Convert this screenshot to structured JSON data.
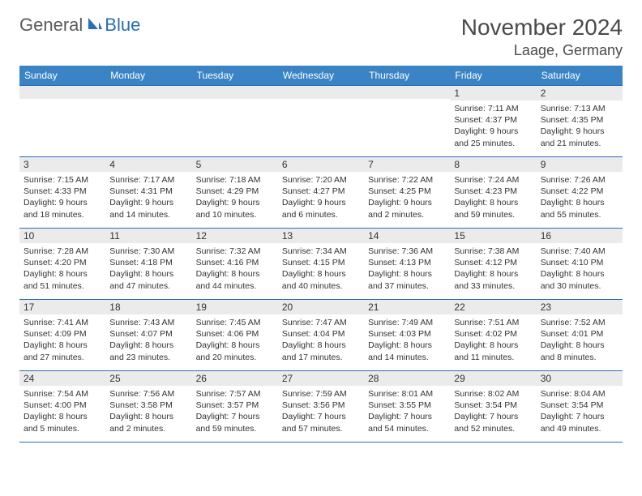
{
  "logo": {
    "general": "General",
    "blue": "Blue"
  },
  "header": {
    "title": "November 2024",
    "location": "Laage, Germany"
  },
  "colors": {
    "header_bg": "#3a84c6",
    "header_text": "#ffffff",
    "border": "#2a6db8",
    "daynum_bg": "#ebebeb",
    "logo_gray": "#5a5a5a",
    "logo_blue": "#2a6db8"
  },
  "weekdays": [
    "Sunday",
    "Monday",
    "Tuesday",
    "Wednesday",
    "Thursday",
    "Friday",
    "Saturday"
  ],
  "weeks": [
    [
      {
        "n": "",
        "sr": "",
        "ss": "",
        "dl": ""
      },
      {
        "n": "",
        "sr": "",
        "ss": "",
        "dl": ""
      },
      {
        "n": "",
        "sr": "",
        "ss": "",
        "dl": ""
      },
      {
        "n": "",
        "sr": "",
        "ss": "",
        "dl": ""
      },
      {
        "n": "",
        "sr": "",
        "ss": "",
        "dl": ""
      },
      {
        "n": "1",
        "sr": "Sunrise: 7:11 AM",
        "ss": "Sunset: 4:37 PM",
        "dl": "Daylight: 9 hours and 25 minutes."
      },
      {
        "n": "2",
        "sr": "Sunrise: 7:13 AM",
        "ss": "Sunset: 4:35 PM",
        "dl": "Daylight: 9 hours and 21 minutes."
      }
    ],
    [
      {
        "n": "3",
        "sr": "Sunrise: 7:15 AM",
        "ss": "Sunset: 4:33 PM",
        "dl": "Daylight: 9 hours and 18 minutes."
      },
      {
        "n": "4",
        "sr": "Sunrise: 7:17 AM",
        "ss": "Sunset: 4:31 PM",
        "dl": "Daylight: 9 hours and 14 minutes."
      },
      {
        "n": "5",
        "sr": "Sunrise: 7:18 AM",
        "ss": "Sunset: 4:29 PM",
        "dl": "Daylight: 9 hours and 10 minutes."
      },
      {
        "n": "6",
        "sr": "Sunrise: 7:20 AM",
        "ss": "Sunset: 4:27 PM",
        "dl": "Daylight: 9 hours and 6 minutes."
      },
      {
        "n": "7",
        "sr": "Sunrise: 7:22 AM",
        "ss": "Sunset: 4:25 PM",
        "dl": "Daylight: 9 hours and 2 minutes."
      },
      {
        "n": "8",
        "sr": "Sunrise: 7:24 AM",
        "ss": "Sunset: 4:23 PM",
        "dl": "Daylight: 8 hours and 59 minutes."
      },
      {
        "n": "9",
        "sr": "Sunrise: 7:26 AM",
        "ss": "Sunset: 4:22 PM",
        "dl": "Daylight: 8 hours and 55 minutes."
      }
    ],
    [
      {
        "n": "10",
        "sr": "Sunrise: 7:28 AM",
        "ss": "Sunset: 4:20 PM",
        "dl": "Daylight: 8 hours and 51 minutes."
      },
      {
        "n": "11",
        "sr": "Sunrise: 7:30 AM",
        "ss": "Sunset: 4:18 PM",
        "dl": "Daylight: 8 hours and 47 minutes."
      },
      {
        "n": "12",
        "sr": "Sunrise: 7:32 AM",
        "ss": "Sunset: 4:16 PM",
        "dl": "Daylight: 8 hours and 44 minutes."
      },
      {
        "n": "13",
        "sr": "Sunrise: 7:34 AM",
        "ss": "Sunset: 4:15 PM",
        "dl": "Daylight: 8 hours and 40 minutes."
      },
      {
        "n": "14",
        "sr": "Sunrise: 7:36 AM",
        "ss": "Sunset: 4:13 PM",
        "dl": "Daylight: 8 hours and 37 minutes."
      },
      {
        "n": "15",
        "sr": "Sunrise: 7:38 AM",
        "ss": "Sunset: 4:12 PM",
        "dl": "Daylight: 8 hours and 33 minutes."
      },
      {
        "n": "16",
        "sr": "Sunrise: 7:40 AM",
        "ss": "Sunset: 4:10 PM",
        "dl": "Daylight: 8 hours and 30 minutes."
      }
    ],
    [
      {
        "n": "17",
        "sr": "Sunrise: 7:41 AM",
        "ss": "Sunset: 4:09 PM",
        "dl": "Daylight: 8 hours and 27 minutes."
      },
      {
        "n": "18",
        "sr": "Sunrise: 7:43 AM",
        "ss": "Sunset: 4:07 PM",
        "dl": "Daylight: 8 hours and 23 minutes."
      },
      {
        "n": "19",
        "sr": "Sunrise: 7:45 AM",
        "ss": "Sunset: 4:06 PM",
        "dl": "Daylight: 8 hours and 20 minutes."
      },
      {
        "n": "20",
        "sr": "Sunrise: 7:47 AM",
        "ss": "Sunset: 4:04 PM",
        "dl": "Daylight: 8 hours and 17 minutes."
      },
      {
        "n": "21",
        "sr": "Sunrise: 7:49 AM",
        "ss": "Sunset: 4:03 PM",
        "dl": "Daylight: 8 hours and 14 minutes."
      },
      {
        "n": "22",
        "sr": "Sunrise: 7:51 AM",
        "ss": "Sunset: 4:02 PM",
        "dl": "Daylight: 8 hours and 11 minutes."
      },
      {
        "n": "23",
        "sr": "Sunrise: 7:52 AM",
        "ss": "Sunset: 4:01 PM",
        "dl": "Daylight: 8 hours and 8 minutes."
      }
    ],
    [
      {
        "n": "24",
        "sr": "Sunrise: 7:54 AM",
        "ss": "Sunset: 4:00 PM",
        "dl": "Daylight: 8 hours and 5 minutes."
      },
      {
        "n": "25",
        "sr": "Sunrise: 7:56 AM",
        "ss": "Sunset: 3:58 PM",
        "dl": "Daylight: 8 hours and 2 minutes."
      },
      {
        "n": "26",
        "sr": "Sunrise: 7:57 AM",
        "ss": "Sunset: 3:57 PM",
        "dl": "Daylight: 7 hours and 59 minutes."
      },
      {
        "n": "27",
        "sr": "Sunrise: 7:59 AM",
        "ss": "Sunset: 3:56 PM",
        "dl": "Daylight: 7 hours and 57 minutes."
      },
      {
        "n": "28",
        "sr": "Sunrise: 8:01 AM",
        "ss": "Sunset: 3:55 PM",
        "dl": "Daylight: 7 hours and 54 minutes."
      },
      {
        "n": "29",
        "sr": "Sunrise: 8:02 AM",
        "ss": "Sunset: 3:54 PM",
        "dl": "Daylight: 7 hours and 52 minutes."
      },
      {
        "n": "30",
        "sr": "Sunrise: 8:04 AM",
        "ss": "Sunset: 3:54 PM",
        "dl": "Daylight: 7 hours and 49 minutes."
      }
    ]
  ]
}
